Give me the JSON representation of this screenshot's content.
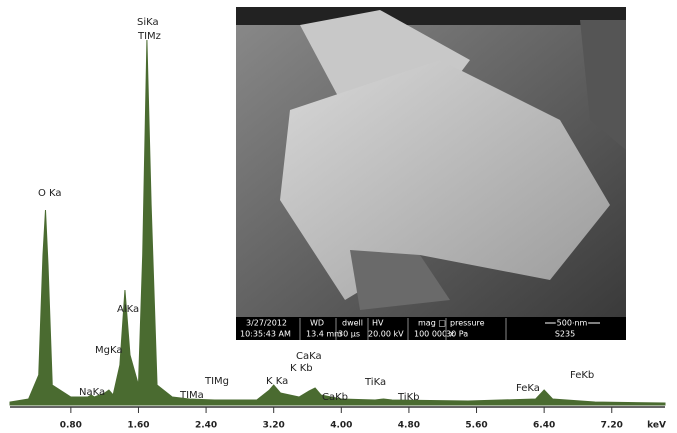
{
  "chart_data": {
    "type": "area",
    "x_unit": "keV",
    "color": "#4a6b30",
    "x": [
      0.08,
      0.3,
      0.42,
      0.47,
      0.5,
      0.53,
      0.58,
      0.8,
      1.0,
      1.04,
      1.08,
      1.2,
      1.25,
      1.3,
      1.38,
      1.44,
      1.5,
      1.6,
      1.65,
      1.7,
      1.75,
      1.82,
      2.0,
      2.2,
      2.5,
      3.0,
      3.15,
      3.2,
      3.28,
      3.5,
      3.62,
      3.69,
      3.76,
      4.0,
      4.4,
      4.5,
      4.6,
      5.5,
      6.3,
      6.4,
      6.5,
      7.0,
      7.83
    ],
    "values": [
      3,
      6,
      30,
      150,
      195,
      140,
      20,
      8,
      8,
      10,
      8,
      12,
      15,
      10,
      40,
      115,
      50,
      20,
      150,
      365,
      200,
      20,
      8,
      6,
      5,
      5,
      15,
      20,
      12,
      8,
      14,
      17,
      10,
      6,
      5,
      6,
      5,
      4,
      6,
      15,
      6,
      3,
      2
    ],
    "ylim": [
      0,
      370
    ],
    "xlim": [
      0.08,
      7.83
    ],
    "xticks": [
      {
        "value": 0.8,
        "label": "0.80"
      },
      {
        "value": 1.6,
        "label": "1.60"
      },
      {
        "value": 2.4,
        "label": "2.40"
      },
      {
        "value": 3.2,
        "label": "3.20"
      },
      {
        "value": 4.0,
        "label": "4.00"
      },
      {
        "value": 4.8,
        "label": "4.80"
      },
      {
        "value": 5.6,
        "label": "5.60"
      },
      {
        "value": 6.4,
        "label": "6.40"
      },
      {
        "value": 7.2,
        "label": "7.20"
      }
    ],
    "peak_labels": [
      "SiKa",
      "TIMz",
      "O Ka",
      "AlKa",
      "MgKa",
      "NaKa",
      "TIMa",
      "TIMg",
      "CaKa",
      "K Kb",
      "K Ka",
      "CaKb",
      "TiKa",
      "TiKb",
      "FeKa",
      "FeKb"
    ],
    "image_info": {
      "row1": [
        "3/27/2012",
        "WD",
        "dwell",
        "HV",
        "mag □",
        "pressure"
      ],
      "row2": [
        "10:35:43 AM",
        "13.4 mm",
        "30 µs",
        "20.00 kV",
        "100 000 x",
        "30 Pa"
      ],
      "scale_bar": "500 nm",
      "sample": "S235"
    }
  }
}
